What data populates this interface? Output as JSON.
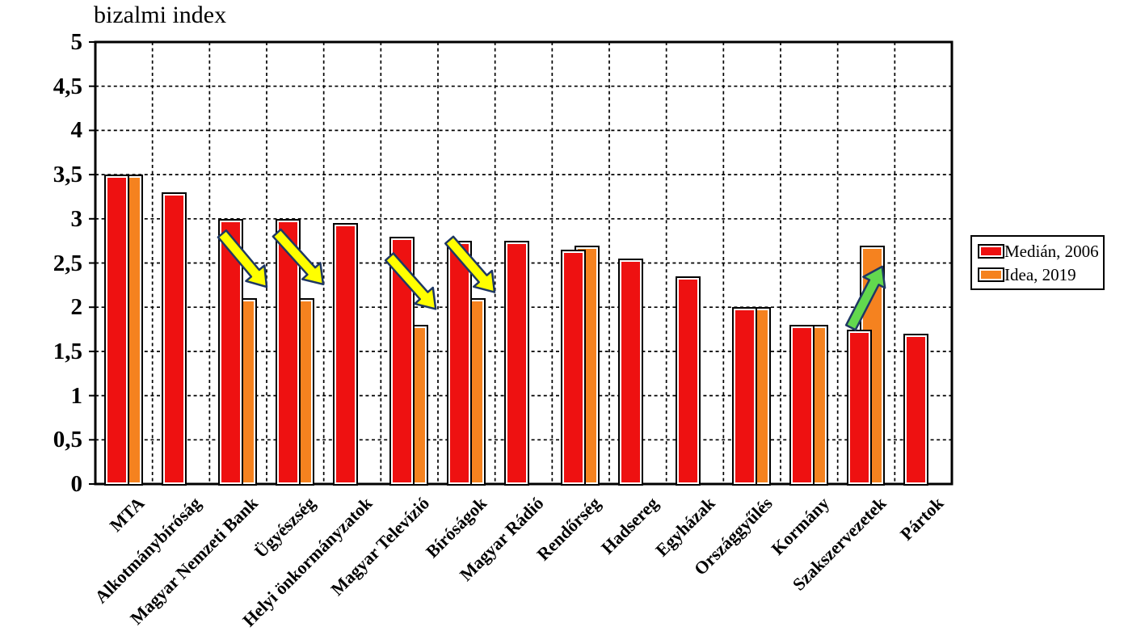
{
  "title": "bizalmi index",
  "colors": {
    "median_red": "#EE1111",
    "idea_orange": "#F5821F",
    "arrow_down_yellow": "#FFFF00",
    "arrow_up_green": "#62D84E",
    "arrow_outline": "#1F3864",
    "axis_black": "#000000",
    "background": "#FFFFFF"
  },
  "y_axis": {
    "label": "bizalmi index",
    "min": 0,
    "max": 5,
    "step": 0.5,
    "tick_labels": [
      "5",
      "4,5",
      "4",
      "3,5",
      "3",
      "2,5",
      "2",
      "1,5",
      "1",
      "0,5",
      "0"
    ]
  },
  "legend": {
    "items": [
      {
        "label": "Medián, 2006",
        "series": "median"
      },
      {
        "label": "Idea, 2019",
        "series": "idea"
      }
    ]
  },
  "chart_data": {
    "type": "bar",
    "title": "bizalmi index",
    "xlabel": "",
    "ylabel": "bizalmi index",
    "ylim": [
      0,
      5
    ],
    "grid": true,
    "legend_position": "right",
    "categories": [
      "MTA",
      "Alkotmánybíróság",
      "Magyar Nemzeti Bank",
      "Ügyészség",
      "Helyi önkormányzatok",
      "Magyar Televízió",
      "Bíróságok",
      "Magyar Rádió",
      "Rendőrség",
      "Hadsereg",
      "Egyházak",
      "Országgyűlés",
      "Kormány",
      "Szakszervezetek",
      "Pártok"
    ],
    "series": [
      {
        "name": "Medián, 2006",
        "color": "#EE1111",
        "values": [
          3.5,
          3.3,
          3.0,
          3.0,
          2.95,
          2.8,
          2.75,
          2.75,
          2.65,
          2.55,
          2.35,
          2.0,
          1.8,
          1.75,
          1.7
        ]
      },
      {
        "name": "Idea, 2019",
        "color": "#F5821F",
        "values": [
          3.5,
          null,
          2.1,
          2.1,
          null,
          1.8,
          2.1,
          null,
          2.7,
          null,
          null,
          2.0,
          1.8,
          2.7,
          null
        ]
      }
    ],
    "annotations": [
      {
        "target": "Magyar Nemzeti Bank",
        "direction": "down",
        "color": "#FFFF00",
        "from": {
          "cat": 2.22,
          "val": 2.83
        },
        "to": {
          "cat": 3.0,
          "val": 2.23
        }
      },
      {
        "target": "Ügyészség",
        "direction": "down",
        "color": "#FFFF00",
        "from": {
          "cat": 3.18,
          "val": 2.84
        },
        "to": {
          "cat": 3.99,
          "val": 2.26
        }
      },
      {
        "target": "Magyar Televízió",
        "direction": "down",
        "color": "#FFFF00",
        "from": {
          "cat": 5.15,
          "val": 2.57
        },
        "to": {
          "cat": 5.96,
          "val": 1.98
        }
      },
      {
        "target": "Bíróságok",
        "direction": "down",
        "color": "#FFFF00",
        "from": {
          "cat": 6.2,
          "val": 2.76
        },
        "to": {
          "cat": 6.99,
          "val": 2.17
        }
      },
      {
        "target": "Szakszervezetek",
        "direction": "up",
        "color": "#62D84E",
        "from": {
          "cat": 13.23,
          "val": 1.77
        },
        "to": {
          "cat": 13.78,
          "val": 2.46
        }
      }
    ]
  }
}
